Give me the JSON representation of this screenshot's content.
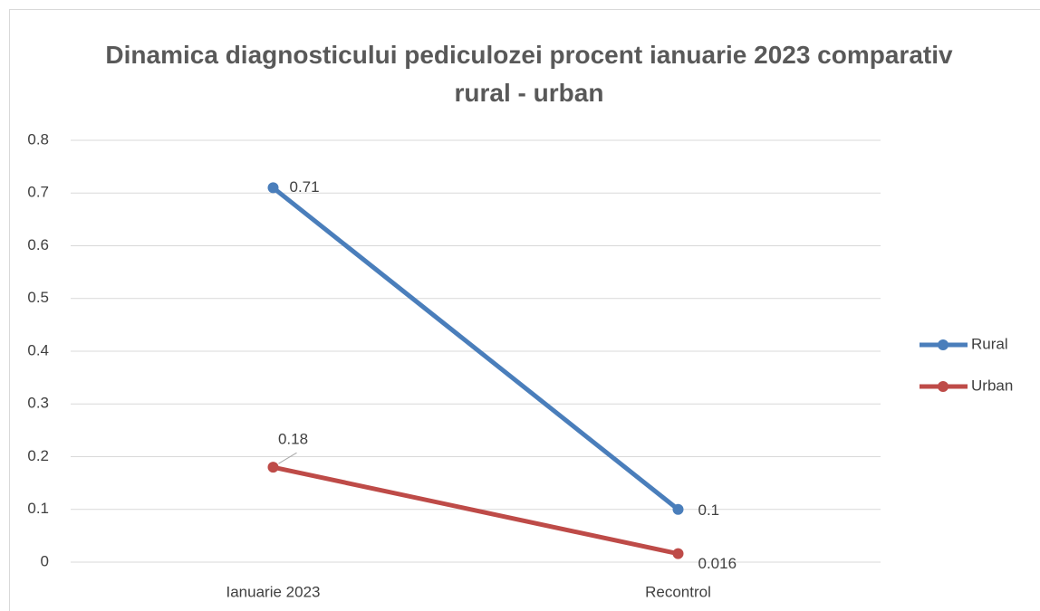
{
  "chart_data": {
    "type": "line",
    "title": "Dinamica diagnosticului pediculozei procent ianuarie 2023 comparativ rural - urban",
    "categories": [
      "Ianuarie 2023",
      "Recontrol"
    ],
    "series": [
      {
        "name": "Rural",
        "color": "#4a7ebb",
        "values": [
          0.71,
          0.1
        ]
      },
      {
        "name": "Urban",
        "color": "#be4b48",
        "values": [
          0.18,
          0.016
        ]
      }
    ],
    "ylim": [
      0,
      0.8
    ],
    "yticks": [
      0,
      0.1,
      0.2,
      0.3,
      0.4,
      0.5,
      0.6,
      0.7,
      0.8
    ],
    "grid": true,
    "legend": "right"
  }
}
